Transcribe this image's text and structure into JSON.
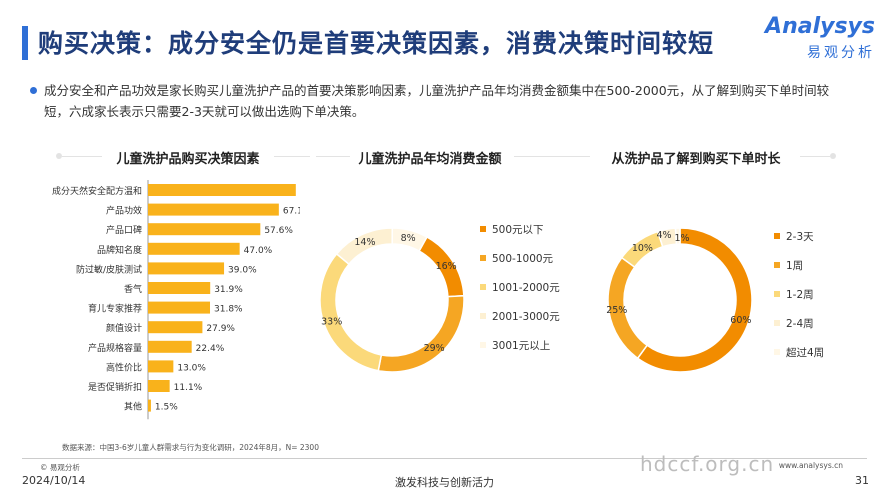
{
  "header": {
    "title": "购买决策：成分安全仍是首要决策因素，消费决策时间较短",
    "logo_en": "Analysys",
    "logo_cn": "易观分析"
  },
  "summary": "成分安全和产品功效是家长购买儿童洗护产品的首要决策影响因素，儿童洗护产品年均消费金额集中在500-2000元，从了解到购买下单时间较短，六成家长表示只需要2-3天就可以做出选购下单决策。",
  "colors": {
    "orange_dark": "#f28c00",
    "orange": "#f5a623",
    "yellow": "#f9c23c",
    "light_yellow": "#fbd97a",
    "cream": "#fdf0d2",
    "accent_blue": "#2f6fd6"
  },
  "chart_data": [
    {
      "type": "bar",
      "orientation": "horizontal",
      "title": "儿童洗护品购买决策因素",
      "categories": [
        "成分天然安全配方温和",
        "产品功效",
        "产品口碑",
        "品牌知名度",
        "防过敏/皮肤测试",
        "香气",
        "育儿专家推荐",
        "颜值设计",
        "产品规格容量",
        "高性价比",
        "是否促销折扣",
        "其他"
      ],
      "values": [
        75.8,
        67.1,
        57.6,
        47.0,
        39.0,
        31.9,
        31.8,
        27.9,
        22.4,
        13.0,
        11.1,
        1.5
      ],
      "value_labels": [
        "75.8%",
        "67.1%",
        "57.6%",
        "47.0%",
        "39.0%",
        "31.9%",
        "31.8%",
        "27.9%",
        "22.4%",
        "13.0%",
        "11.1%",
        "1.5%"
      ],
      "xlim": [
        0,
        100
      ],
      "color": "#f9b21b"
    },
    {
      "type": "pie",
      "variant": "donut",
      "title": "儿童洗护品年均消费金额",
      "categories": [
        "500元以下",
        "500-1000元",
        "1001-2000元",
        "2001-3000元",
        "3001元以上"
      ],
      "values": [
        16,
        29,
        33,
        14,
        8
      ],
      "value_labels": [
        "16%",
        "29%",
        "33%",
        "14%",
        "8%"
      ],
      "colors": [
        "#f28c00",
        "#f5a623",
        "#fbd97a",
        "#fdf0d2",
        "#fff7e6"
      ],
      "legend": "right"
    },
    {
      "type": "pie",
      "variant": "donut",
      "title": "从洗护品了解到购买下单时长",
      "categories": [
        "2-3天",
        "1周",
        "1-2周",
        "2-4周",
        "超过4周"
      ],
      "values": [
        60,
        25,
        10,
        4,
        1
      ],
      "value_labels": [
        "60%",
        "25%",
        "10%",
        "4%",
        "1%"
      ],
      "colors": [
        "#f28c00",
        "#f5a623",
        "#fbd97a",
        "#fdf0d2",
        "#fff7e6"
      ],
      "legend": "right"
    }
  ],
  "footer": {
    "source": "数据来源：中国3-6岁儿童人群需求与行为变化调研，2024年8月，N= 2300",
    "copyright": "© 易观分析",
    "date": "2024/10/14",
    "center": "激发科技与创新活力",
    "url": "www.analysys.cn",
    "page": "31",
    "watermark": "hdccf.org.cn"
  }
}
